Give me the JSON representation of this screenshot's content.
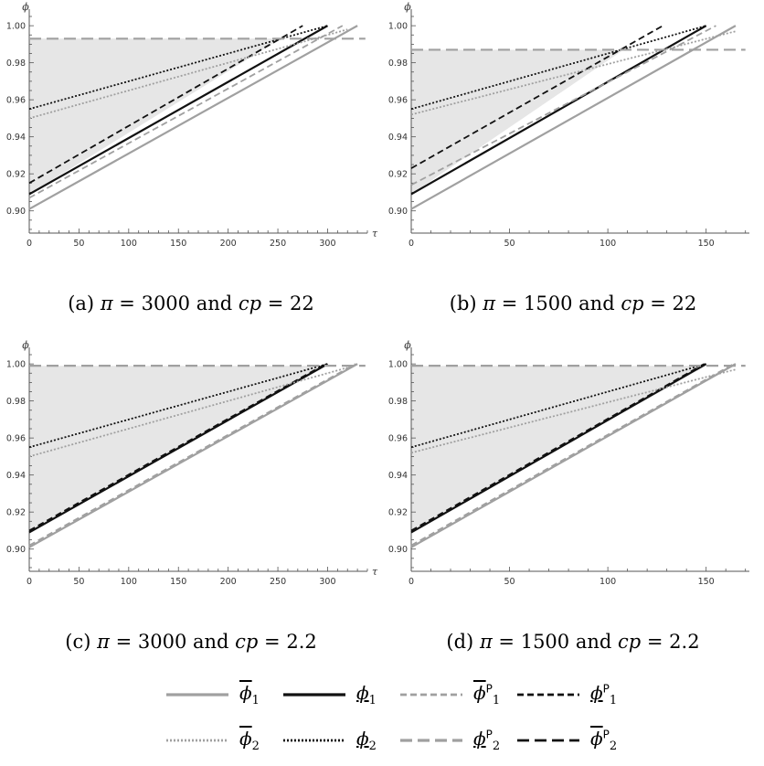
{
  "chart_data": [
    {
      "type": "line",
      "id": "a",
      "caption_prefix": "(a) ",
      "pi": "3000",
      "cp": "22",
      "ylabel": "ϕ",
      "xlabel": "τ",
      "xlim": [
        0,
        340
      ],
      "ylim": [
        0.888,
        1.005
      ],
      "xticks": [
        0,
        50,
        100,
        150,
        200,
        250,
        300
      ],
      "yticks": [
        0.9,
        0.92,
        0.94,
        0.96,
        0.98,
        1.0
      ],
      "shade": [
        [
          0,
          0.909
        ],
        [
          0,
          0.993
        ],
        [
          253,
          0.993
        ]
      ],
      "series": [
        {
          "key": "phibar1",
          "x": [
            0,
            330
          ],
          "y": [
            0.901,
            1.0
          ]
        },
        {
          "key": "phiunder1",
          "x": [
            0,
            300
          ],
          "y": [
            0.909,
            1.0
          ]
        },
        {
          "key": "phibar1P",
          "x": [
            0,
            315
          ],
          "y": [
            0.907,
            1.0
          ]
        },
        {
          "key": "phiunder1P",
          "x": [
            0,
            275
          ],
          "y": [
            0.915,
            1.0
          ]
        },
        {
          "key": "phibar2",
          "x": [
            0,
            320
          ],
          "y": [
            0.95,
            0.998
          ]
        },
        {
          "key": "phiunder2",
          "x": [
            0,
            300
          ],
          "y": [
            0.955,
            1.0
          ]
        },
        {
          "key": "phiunder2P",
          "x": [
            0,
            338
          ],
          "y": [
            0.993,
            0.993
          ]
        }
      ]
    },
    {
      "type": "line",
      "id": "b",
      "caption_prefix": "(b) ",
      "pi": "1500",
      "cp": "22",
      "ylabel": "ϕ",
      "xlabel": "",
      "xlim": [
        0,
        172
      ],
      "ylim": [
        0.888,
        1.005
      ],
      "xticks": [
        0,
        50,
        100,
        150
      ],
      "yticks": [
        0.9,
        0.92,
        0.94,
        0.96,
        0.98,
        1.0
      ],
      "shade": [
        [
          0,
          0.909
        ],
        [
          0,
          0.987
        ],
        [
          108,
          0.987
        ]
      ],
      "series": [
        {
          "key": "phibar1",
          "x": [
            0,
            165
          ],
          "y": [
            0.901,
            1.0
          ]
        },
        {
          "key": "phiunder1",
          "x": [
            0,
            150
          ],
          "y": [
            0.909,
            1.0
          ]
        },
        {
          "key": "phibar1P",
          "x": [
            0,
            155
          ],
          "y": [
            0.914,
            1.0
          ]
        },
        {
          "key": "phiunder1P",
          "x": [
            0,
            128
          ],
          "y": [
            0.923,
            1.0
          ]
        },
        {
          "key": "phibar2",
          "x": [
            0,
            165
          ],
          "y": [
            0.952,
            0.997
          ]
        },
        {
          "key": "phiunder2",
          "x": [
            0,
            150
          ],
          "y": [
            0.955,
            1.0
          ]
        },
        {
          "key": "phiunder2P",
          "x": [
            0,
            170
          ],
          "y": [
            0.987,
            0.987
          ]
        }
      ]
    },
    {
      "type": "line",
      "id": "c",
      "caption_prefix": "(c) ",
      "pi": "3000",
      "cp": "2.2",
      "ylabel": "ϕ",
      "xlabel": "τ",
      "xlim": [
        0,
        340
      ],
      "ylim": [
        0.888,
        1.005
      ],
      "xticks": [
        0,
        50,
        100,
        150,
        200,
        250,
        300
      ],
      "yticks": [
        0.9,
        0.92,
        0.94,
        0.96,
        0.98,
        1.0
      ],
      "shade": [
        [
          0,
          0.909
        ],
        [
          0,
          0.999
        ],
        [
          299,
          0.999
        ]
      ],
      "series": [
        {
          "key": "phibar1",
          "x": [
            0,
            330
          ],
          "y": [
            0.901,
            1.0
          ]
        },
        {
          "key": "phiunder1",
          "x": [
            0,
            300
          ],
          "y": [
            0.909,
            1.0
          ]
        },
        {
          "key": "phibar1P",
          "x": [
            0,
            328
          ],
          "y": [
            0.902,
            1.0
          ]
        },
        {
          "key": "phiunder1P",
          "x": [
            0,
            298
          ],
          "y": [
            0.91,
            1.0
          ]
        },
        {
          "key": "phibar2",
          "x": [
            0,
            320
          ],
          "y": [
            0.95,
            0.998
          ]
        },
        {
          "key": "phiunder2",
          "x": [
            0,
            300
          ],
          "y": [
            0.955,
            1.0
          ]
        },
        {
          "key": "phiunder2P",
          "x": [
            0,
            338
          ],
          "y": [
            0.999,
            0.999
          ]
        }
      ]
    },
    {
      "type": "line",
      "id": "d",
      "caption_prefix": "(d) ",
      "pi": "1500",
      "cp": "2.2",
      "ylabel": "ϕ",
      "xlabel": "",
      "xlim": [
        0,
        172
      ],
      "ylim": [
        0.888,
        1.005
      ],
      "xticks": [
        0,
        50,
        100,
        150
      ],
      "yticks": [
        0.9,
        0.92,
        0.94,
        0.96,
        0.98,
        1.0
      ],
      "shade": [
        [
          0,
          0.909
        ],
        [
          0,
          0.999
        ],
        [
          150,
          0.999
        ]
      ],
      "series": [
        {
          "key": "phibar1",
          "x": [
            0,
            165
          ],
          "y": [
            0.901,
            1.0
          ]
        },
        {
          "key": "phiunder1",
          "x": [
            0,
            150
          ],
          "y": [
            0.909,
            1.0
          ]
        },
        {
          "key": "phibar1P",
          "x": [
            0,
            164
          ],
          "y": [
            0.902,
            1.0
          ]
        },
        {
          "key": "phiunder1P",
          "x": [
            0,
            149
          ],
          "y": [
            0.91,
            1.0
          ]
        },
        {
          "key": "phibar2",
          "x": [
            0,
            165
          ],
          "y": [
            0.952,
            0.997
          ]
        },
        {
          "key": "phiunder2",
          "x": [
            0,
            150
          ],
          "y": [
            0.955,
            1.0
          ]
        },
        {
          "key": "phiunder2P",
          "x": [
            0,
            170
          ],
          "y": [
            0.999,
            0.999
          ]
        }
      ]
    }
  ],
  "caption_text": {
    "pi_sym": "π",
    "eq": " = ",
    "and": " and ",
    "cp_sym": "cp"
  },
  "legend": {
    "entries": [
      {
        "key": "phibar1",
        "sym": "ϕ",
        "sub": "1",
        "sup": "",
        "accent": "over"
      },
      {
        "key": "phiunder1",
        "sym": "ϕ",
        "sub": "1",
        "sup": "",
        "accent": "under"
      },
      {
        "key": "phibar1P",
        "sym": "ϕ",
        "sub": "1",
        "sup": "P",
        "accent": "over"
      },
      {
        "key": "phiunder1P",
        "sym": "ϕ",
        "sub": "1",
        "sup": "P",
        "accent": "under"
      },
      {
        "key": "phibar2",
        "sym": "ϕ",
        "sub": "2",
        "sup": "",
        "accent": "over"
      },
      {
        "key": "phiunder2",
        "sym": "ϕ",
        "sub": "2",
        "sup": "",
        "accent": "under"
      },
      {
        "key": "phiunder2P",
        "sym": "ϕ",
        "sub": "2",
        "sup": "P",
        "accent": "under"
      },
      {
        "key": "phibar2P",
        "sym": "ϕ",
        "sub": "2",
        "sup": "P",
        "accent": "over"
      }
    ]
  },
  "styles": {
    "phibar1": {
      "color": "#a0a0a0",
      "width": 2.2,
      "dash": ""
    },
    "phiunder1": {
      "color": "#111111",
      "width": 2.2,
      "dash": ""
    },
    "phibar1P": {
      "color": "#a0a0a0",
      "width": 1.8,
      "dash": "7,4"
    },
    "phiunder1P": {
      "color": "#111111",
      "width": 1.8,
      "dash": "7,4"
    },
    "phibar2": {
      "color": "#a0a0a0",
      "width": 1.8,
      "dash": "2,2"
    },
    "phiunder2": {
      "color": "#111111",
      "width": 1.8,
      "dash": "2,2"
    },
    "phiunder2P": {
      "color": "#a0a0a0",
      "width": 2.2,
      "dash": "13,6"
    },
    "phibar2P": {
      "color": "#111111",
      "width": 1.8,
      "dash": "13,6"
    },
    "shade_color": "#e6e6e6"
  }
}
